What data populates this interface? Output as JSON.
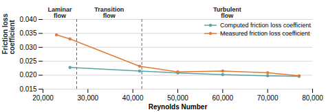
{
  "chart_data": {
    "type": "line",
    "x": [
      23000,
      26000,
      41500,
      50000,
      60000,
      70000,
      77000
    ],
    "series": [
      {
        "name": "Computed friction loss coefficient",
        "color": "#5BA3A0",
        "marker": "circle",
        "line_style": "solid",
        "values": [
          null,
          0.0228,
          0.0215,
          0.0208,
          0.0202,
          0.0198,
          0.0196
        ]
      },
      {
        "name": "Measured friction loss coefficient",
        "color": "#E07B39",
        "marker": "circle",
        "line_style": "solid",
        "values": [
          0.0345,
          0.033,
          0.0232,
          0.0212,
          0.0215,
          0.0209,
          0.0198
        ]
      }
    ],
    "xlabel": "Reynolds Number",
    "ylabel": "Friction loss\ncoefficient",
    "xlim": [
      20000,
      80000
    ],
    "xticks": [
      {
        "value": 20000,
        "label": "20,000"
      },
      {
        "value": 30000,
        "label": "30,000"
      },
      {
        "value": 40000,
        "label": "40,000"
      },
      {
        "value": 50000,
        "label": "50,000"
      },
      {
        "value": 60000,
        "label": "60,000"
      },
      {
        "value": 70000,
        "label": "70,000"
      },
      {
        "value": 80000,
        "label": "80,000"
      }
    ],
    "ylim": [
      0.015,
      0.04
    ],
    "yticks": [
      0.015,
      {
        "value": 0.02,
        "label": "0.020"
      },
      0.025,
      {
        "value": 0.03,
        "label": "0.030"
      },
      0.035,
      {
        "value": 0.04,
        "label": "0.040"
      }
    ],
    "vlines": [
      27500,
      42000
    ],
    "annotations": [
      "Laminar\nflow",
      "Transition\nflow",
      "Turbulent\nflow"
    ],
    "grid": "y",
    "legend": "upper right"
  }
}
